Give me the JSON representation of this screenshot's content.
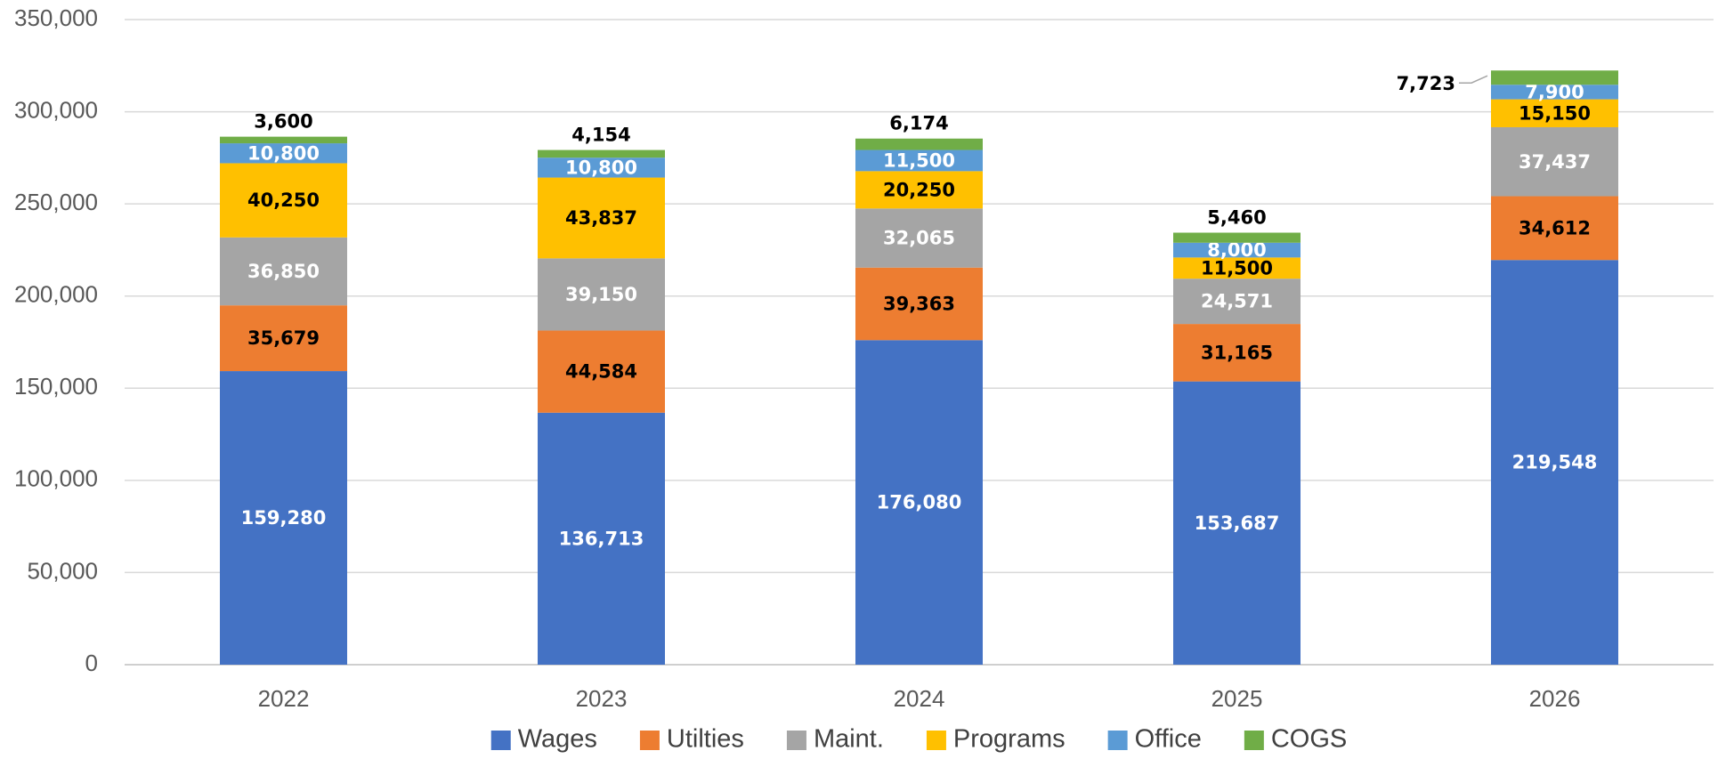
{
  "chart_data": {
    "type": "stacked_bar",
    "categories": [
      "2022",
      "2023",
      "2024",
      "2025",
      "2026"
    ],
    "series": [
      {
        "name": "Wages",
        "color": "#4472c4",
        "label_color": "#ffffff",
        "values": [
          159280,
          136713,
          176080,
          153687,
          219548
        ],
        "value_labels": [
          "159,280",
          "136,713",
          "176,080",
          "153,687",
          "219,548"
        ]
      },
      {
        "name": "Utilties",
        "color": "#ed7d31",
        "label_color": "#000000",
        "values": [
          35679,
          44584,
          39363,
          31165,
          34612
        ],
        "value_labels": [
          "35,679",
          "44,584",
          "39,363",
          "31,165",
          "34,612"
        ]
      },
      {
        "name": "Maint.",
        "color": "#a5a5a5",
        "label_color": "#ffffff",
        "values": [
          36850,
          39150,
          32065,
          24571,
          37437
        ],
        "value_labels": [
          "36,850",
          "39,150",
          "32,065",
          "24,571",
          "37,437"
        ]
      },
      {
        "name": "Programs",
        "color": "#ffc000",
        "label_color": "#000000",
        "values": [
          40250,
          43837,
          20250,
          11500,
          15150
        ],
        "value_labels": [
          "40,250",
          "43,837",
          "20,250",
          "11,500",
          "15,150"
        ]
      },
      {
        "name": "Office",
        "color": "#5b9bd5",
        "label_color": "#ffffff",
        "values": [
          10800,
          10800,
          11500,
          8000,
          7900
        ],
        "value_labels": [
          "10,800",
          "10,800",
          "11,500",
          "8,000",
          "7,900"
        ]
      },
      {
        "name": "COGS",
        "color": "#70ad47",
        "label_color": "#000000",
        "values": [
          3600,
          4154,
          6174,
          5460,
          7723
        ],
        "value_labels": [
          "3,600",
          "4,154",
          "6,174",
          "5,460",
          "7,723"
        ]
      }
    ],
    "ylim": [
      0,
      350000
    ],
    "yticks": [
      0,
      {
        "value": 50000,
        "label": "50,000"
      },
      {
        "value": 100000,
        "label": "100,000"
      },
      {
        "value": 150000,
        "label": "150,000"
      },
      {
        "value": 200000,
        "label": "200,000"
      },
      {
        "value": 250000,
        "label": "250,000"
      },
      {
        "value": 300000,
        "label": "300,000"
      },
      {
        "value": 350000,
        "label": "350,000"
      }
    ],
    "grid": true,
    "legend": "bottom"
  }
}
